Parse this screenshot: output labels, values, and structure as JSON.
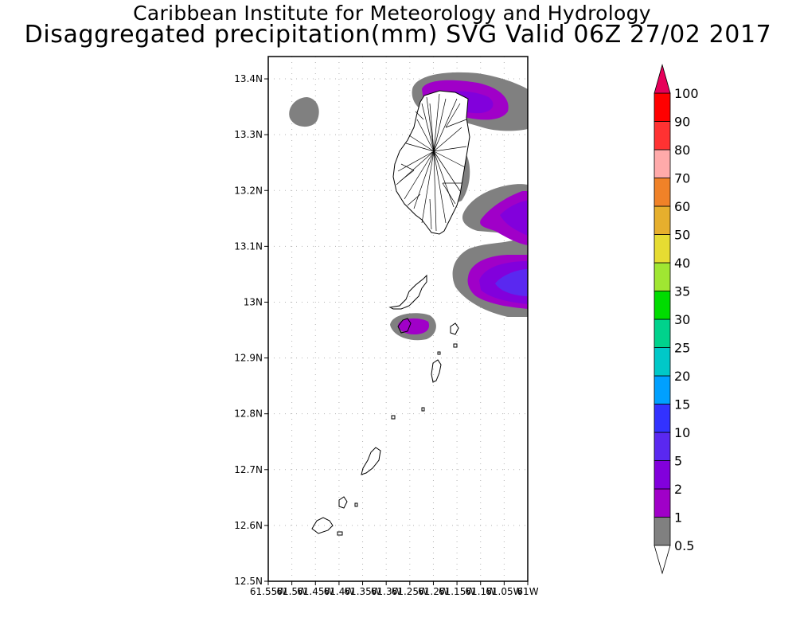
{
  "header": {
    "title": "Caribbean Institute for Meteorology and Hydrology",
    "subtitle": "Disaggregated precipitation(mm) SVG Valid 06Z 27/02 2017"
  },
  "map": {
    "lat_labels": [
      "13.4N",
      "13.3N",
      "13.2N",
      "13.1N",
      "13N",
      "12.9N",
      "12.8N",
      "12.7N",
      "12.6N",
      "12.5N"
    ],
    "lon_labels": [
      "61.55W",
      "61.5W",
      "61.45W",
      "61.4W",
      "61.35W",
      "61.3W",
      "61.25W",
      "61.2W",
      "61.15W",
      "61.1W",
      "61.05W",
      "61W"
    ],
    "lat_range": [
      12.5,
      13.44
    ],
    "lon_range": [
      -61.55,
      -61.0
    ]
  },
  "colorbar": {
    "levels": [
      {
        "label": "0.5",
        "color": "#808080"
      },
      {
        "label": "1",
        "color": "#a000c8"
      },
      {
        "label": "2",
        "color": "#8200dc"
      },
      {
        "label": "5",
        "color": "#5a28f0"
      },
      {
        "label": "10",
        "color": "#3232ff"
      },
      {
        "label": "15",
        "color": "#00a0ff"
      },
      {
        "label": "20",
        "color": "#00c8c8"
      },
      {
        "label": "25",
        "color": "#00d28c"
      },
      {
        "label": "30",
        "color": "#00dc00"
      },
      {
        "label": "35",
        "color": "#a0e632"
      },
      {
        "label": "40",
        "color": "#e6dc32"
      },
      {
        "label": "50",
        "color": "#e6af2d"
      },
      {
        "label": "60",
        "color": "#f08228"
      },
      {
        "label": "70",
        "color": "#ffaaaa"
      },
      {
        "label": "80",
        "color": "#ff3232"
      },
      {
        "label": "90",
        "color": "#ff0000"
      },
      {
        "label": "100",
        "color": "#e6005a"
      }
    ]
  },
  "colors": {
    "land_outline": "#000000",
    "grid": "#b4b4b4"
  }
}
